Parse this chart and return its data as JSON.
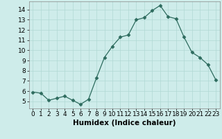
{
  "x": [
    0,
    1,
    2,
    3,
    4,
    5,
    6,
    7,
    8,
    9,
    10,
    11,
    12,
    13,
    14,
    15,
    16,
    17,
    18,
    19,
    20,
    21,
    22,
    23
  ],
  "y": [
    5.9,
    5.8,
    5.1,
    5.3,
    5.5,
    5.1,
    4.7,
    5.2,
    7.3,
    9.3,
    10.4,
    11.3,
    11.5,
    13.0,
    13.2,
    13.9,
    14.4,
    13.3,
    13.1,
    11.3,
    9.8,
    9.3,
    8.6,
    7.1
  ],
  "line_color": "#2d6b5e",
  "marker": "D",
  "marker_size": 2.5,
  "bg_color": "#ceecea",
  "grid_color": "#b0d8d4",
  "xlabel": "Humidex (Indice chaleur)",
  "xlim": [
    -0.5,
    23.5
  ],
  "ylim": [
    4.3,
    14.8
  ],
  "yticks": [
    5,
    6,
    7,
    8,
    9,
    10,
    11,
    12,
    13,
    14
  ],
  "xticks": [
    0,
    1,
    2,
    3,
    4,
    5,
    6,
    7,
    8,
    9,
    10,
    11,
    12,
    13,
    14,
    15,
    16,
    17,
    18,
    19,
    20,
    21,
    22,
    23
  ],
  "xlabel_fontsize": 7.5,
  "tick_fontsize": 6.5
}
